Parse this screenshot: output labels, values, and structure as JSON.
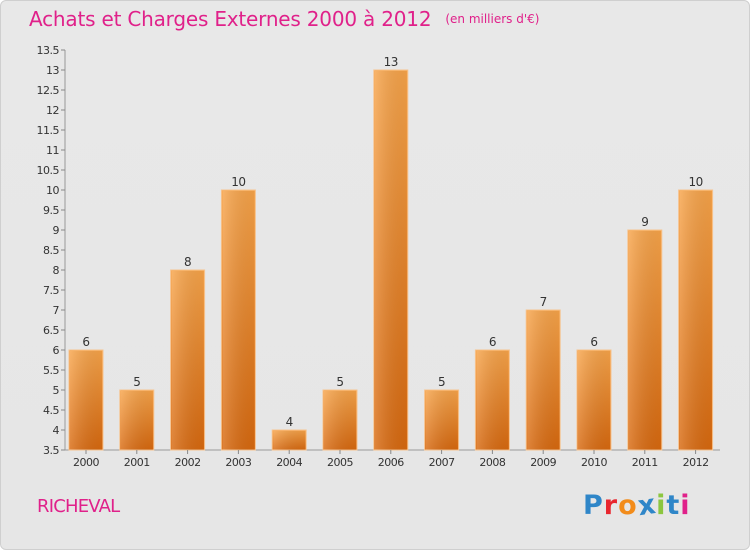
{
  "chart_data": {
    "type": "bar",
    "title": "Achats et Charges Externes 2000 à 2012",
    "subtitle": "(en milliers d'€)",
    "categories": [
      "2000",
      "2001",
      "2002",
      "2003",
      "2004",
      "2005",
      "2006",
      "2007",
      "2008",
      "2009",
      "2010",
      "2011",
      "2012"
    ],
    "values": [
      6,
      5,
      8,
      10,
      4,
      5,
      13,
      5,
      6,
      7,
      6,
      9,
      10
    ],
    "value_labels": [
      "6",
      "5",
      "8",
      "10",
      "4",
      "5",
      "13",
      "5",
      "6",
      "7",
      "6",
      "9",
      "10"
    ],
    "ylim": [
      3.5,
      13.5
    ],
    "yticks": [
      "3.5",
      "4",
      "4.5",
      "5",
      "5.5",
      "6",
      "6.5",
      "7",
      "7.5",
      "8",
      "8.5",
      "9",
      "9.5",
      "10",
      "10.5",
      "11",
      "11.5",
      "12",
      "12.5",
      "13",
      "13.5"
    ],
    "ytick_values": [
      3.5,
      4,
      4.5,
      5,
      5.5,
      6,
      6.5,
      7,
      7.5,
      8,
      8.5,
      9,
      9.5,
      10,
      10.5,
      11,
      11.5,
      12,
      12.5,
      13,
      13.5
    ],
    "xlabel": "",
    "ylabel": "",
    "grid": false,
    "bar_color": "#f7a13f",
    "bar_color_dark": "#d96b10"
  },
  "commune": "RICHEVAL",
  "logo": {
    "text": "Proxiti",
    "letters": [
      {
        "char": "P",
        "color": "#2f86c8"
      },
      {
        "char": "r",
        "color": "#e8262e"
      },
      {
        "char": "o",
        "color": "#f28c1b"
      },
      {
        "char": "x",
        "color": "#2f86c8"
      },
      {
        "char": "i",
        "color": "#8cc63f"
      },
      {
        "char": "t",
        "color": "#2f86c8"
      },
      {
        "char": "i",
        "color": "#e0218a"
      }
    ]
  },
  "colors": {
    "title": "#e0218a",
    "background": "#e7e7e7"
  }
}
